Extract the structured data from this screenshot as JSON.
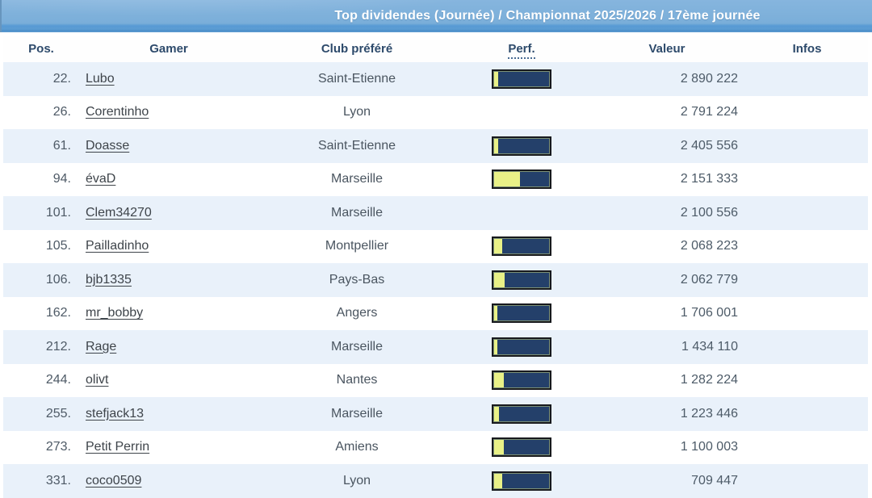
{
  "banner": {
    "title": "Top dividendes (Journée) / Championnat 2025/2026 / 17ème journée",
    "bg_color": "#7db0da",
    "accent_strip_color": "#5b9cd3",
    "title_color": "#ffffff"
  },
  "table": {
    "columns": [
      "Pos.",
      "Gamer",
      "Club préféré",
      "Perf.",
      "Valeur",
      "Infos"
    ],
    "header_color": "#2d4a6b",
    "stripe_color": "#e9f1fa",
    "perf_bar": {
      "track_color": "#24406a",
      "fill_color": "#e9f187",
      "border_color": "#17191d"
    },
    "rows": [
      {
        "pos": "22.",
        "gamer": "Lubo",
        "club": "Saint-Etienne",
        "perf_pct": 7,
        "valeur": "2 890 222",
        "infos": ""
      },
      {
        "pos": "26.",
        "gamer": "Corentinho",
        "club": "Lyon",
        "perf_pct": null,
        "valeur": "2 791 224",
        "infos": ""
      },
      {
        "pos": "61.",
        "gamer": "Doasse",
        "club": "Saint-Etienne",
        "perf_pct": 7,
        "valeur": "2 405 556",
        "infos": ""
      },
      {
        "pos": "94.",
        "gamer": "évaD",
        "club": "Marseille",
        "perf_pct": 46,
        "valeur": "2 151 333",
        "infos": ""
      },
      {
        "pos": "101.",
        "gamer": "Clem34270",
        "club": "Marseille",
        "perf_pct": null,
        "valeur": "2 100 556",
        "infos": ""
      },
      {
        "pos": "105.",
        "gamer": "Pailladinho",
        "club": "Montpellier",
        "perf_pct": 14,
        "valeur": "2 068 223",
        "infos": ""
      },
      {
        "pos": "106.",
        "gamer": "bjb1335",
        "club": "Pays-Bas",
        "perf_pct": 19,
        "valeur": "2 062 779",
        "infos": ""
      },
      {
        "pos": "162.",
        "gamer": "mr_bobby",
        "club": "Angers",
        "perf_pct": 5,
        "valeur": "1 706 001",
        "infos": ""
      },
      {
        "pos": "212.",
        "gamer": "Rage",
        "club": "Marseille",
        "perf_pct": 5,
        "valeur": "1 434 110",
        "infos": ""
      },
      {
        "pos": "244.",
        "gamer": "olivt",
        "club": "Nantes",
        "perf_pct": 17,
        "valeur": "1 282 224",
        "infos": ""
      },
      {
        "pos": "255.",
        "gamer": "stefjack13",
        "club": "Marseille",
        "perf_pct": 8,
        "valeur": "1 223 446",
        "infos": ""
      },
      {
        "pos": "273.",
        "gamer": "Petit Perrin",
        "club": "Amiens",
        "perf_pct": 17,
        "valeur": "1 100 003",
        "infos": ""
      },
      {
        "pos": "331.",
        "gamer": "coco0509",
        "club": "Lyon",
        "perf_pct": 14,
        "valeur": "709 447",
        "infos": ""
      }
    ]
  }
}
